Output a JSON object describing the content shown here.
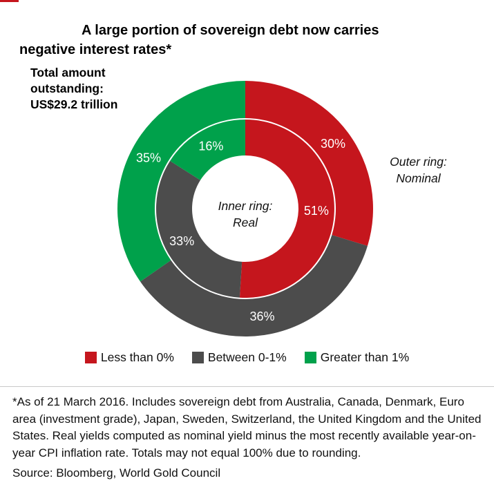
{
  "title": {
    "line1": "A large portion of sovereign debt now carries",
    "line2": "negative interest rates*"
  },
  "annotation_total": {
    "lines": [
      "Total amount",
      "outstanding:",
      "US$29.2 trillion"
    ]
  },
  "ring_labels": {
    "outer": [
      "Outer ring:",
      "Nominal"
    ],
    "inner": [
      "Inner ring:",
      "Real"
    ]
  },
  "legend": [
    {
      "label": "Less than 0%",
      "color": "#c5161d"
    },
    {
      "label": "Between 0-1%",
      "color": "#4c4c4c"
    },
    {
      "label": "Greater than 1%",
      "color": "#00a14b"
    }
  ],
  "chart_data": {
    "type": "pie",
    "variant": "nested-donut",
    "title": "A large portion of sovereign debt now carries negative interest rates*",
    "total_note": "Total amount outstanding: US$29.2 trillion",
    "categories": [
      "Less than 0%",
      "Between 0-1%",
      "Greater than 1%"
    ],
    "colors": [
      "#c5161d",
      "#4c4c4c",
      "#00a14b"
    ],
    "rings": [
      {
        "name": "Nominal",
        "position": "outer",
        "values_pct": [
          30,
          36,
          35
        ]
      },
      {
        "name": "Real",
        "position": "inner",
        "values_pct": [
          51,
          33,
          16
        ]
      }
    ],
    "start_angle_deg": 0,
    "direction": "clockwise",
    "legend_position": "bottom",
    "note": "Totals may not equal 100% due to rounding"
  },
  "footnote": "*As of 21 March 2016. Includes sovereign debt from Australia, Canada, Denmark, Euro area (investment grade), Japan, Sweden, Switzerland, the United Kingdom and the United States. Real yields computed as nominal yield minus the most recently available year-on-year CPI inflation rate. Totals may not equal 100% due to rounding.",
  "source": "Source: Bloomberg, World Gold Council"
}
